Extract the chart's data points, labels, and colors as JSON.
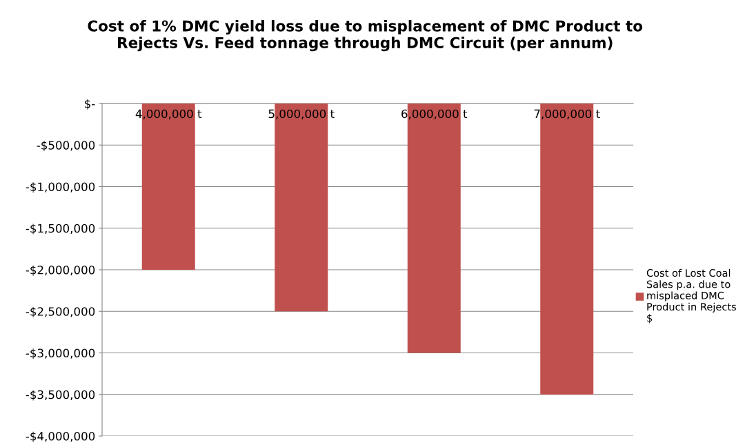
{
  "chart_data": {
    "type": "bar",
    "title": "Cost of 1% DMC yield loss due to misplacement of DMC Product to\nRejects Vs. Feed tonnage through DMC Circuit (per annum)",
    "categories": [
      "4,000,000 t",
      "5,000,000 t",
      "6,000,000 t",
      "7,000,000 t"
    ],
    "series": [
      {
        "name": "Cost of Lost Coal\nSales p.a. due to\nmisplaced DMC\nProduct in Rejects\n$",
        "color": "#c0504d",
        "values": [
          -2000000,
          -2500000,
          -3000000,
          -3500000
        ]
      }
    ],
    "ylim": [
      -4000000,
      0
    ],
    "yticks": [
      {
        "value": 0,
        "label": "$-"
      },
      {
        "value": -500000,
        "label": "-$500,000"
      },
      {
        "value": -1000000,
        "label": "-$1,000,000"
      },
      {
        "value": -1500000,
        "label": "-$1,500,000"
      },
      {
        "value": -2000000,
        "label": "-$2,000,000"
      },
      {
        "value": -2500000,
        "label": "-$2,500,000"
      },
      {
        "value": -3000000,
        "label": "-$3,000,000"
      },
      {
        "value": -3500000,
        "label": "-$3,500,000"
      },
      {
        "value": -4000000,
        "label": "-$4,000,000"
      }
    ],
    "grid": "y",
    "legend": "right"
  }
}
